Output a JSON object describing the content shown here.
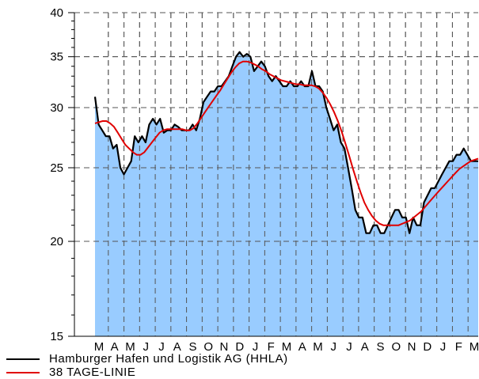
{
  "chart_data": {
    "type": "area",
    "title": "",
    "xlabel": "",
    "ylabel": "",
    "yscale": "log",
    "ylim": [
      15,
      40
    ],
    "yticks": [
      15,
      20,
      25,
      30,
      35,
      40
    ],
    "xlabels": [
      "M",
      "A",
      "M",
      "J",
      "J",
      "A",
      "S",
      "O",
      "N",
      "D",
      "J",
      "F",
      "M",
      "A",
      "M",
      "J",
      "J",
      "A",
      "S",
      "O",
      "N",
      "D",
      "J",
      "F",
      "M"
    ],
    "grid": true,
    "legend_position": "bottom-left",
    "series": [
      {
        "name": "Hamburger Hafen und Logistik AG (HHLA)",
        "color": "#000000",
        "fill": "#99ccff",
        "values": [
          31.0,
          28.5,
          28.0,
          27.5,
          27.5,
          26.5,
          26.8,
          25.0,
          24.5,
          25.0,
          25.5,
          27.5,
          27.0,
          27.5,
          27.0,
          28.5,
          29.0,
          28.5,
          29.0,
          27.8,
          28.0,
          28.0,
          28.5,
          28.3,
          28.0,
          28.0,
          28.0,
          28.5,
          28.0,
          29.0,
          30.5,
          31.0,
          31.5,
          31.5,
          32.0,
          32.0,
          32.5,
          33.0,
          34.0,
          35.0,
          35.5,
          35.0,
          35.3,
          35.0,
          33.5,
          34.0,
          34.5,
          34.0,
          33.0,
          32.5,
          33.0,
          32.5,
          32.0,
          32.0,
          32.5,
          32.0,
          32.0,
          32.5,
          32.0,
          32.0,
          33.5,
          32.0,
          32.0,
          31.5,
          30.0,
          29.0,
          28.0,
          28.5,
          27.0,
          26.5,
          25.0,
          23.5,
          22.0,
          21.5,
          21.5,
          20.5,
          20.5,
          21.0,
          21.0,
          20.5,
          20.5,
          21.0,
          21.5,
          22.0,
          22.0,
          21.5,
          21.5,
          20.5,
          21.5,
          21.0,
          21.0,
          22.5,
          23.0,
          23.5,
          23.5,
          24.0,
          24.5,
          25.0,
          25.5,
          25.5,
          26.0,
          26.0,
          26.5,
          26.0,
          25.5,
          25.5,
          25.5
        ]
      },
      {
        "name": "38 TAGE-LINIE",
        "color": "#e00000",
        "values": [
          28.6,
          28.7,
          28.8,
          28.8,
          28.6,
          28.3,
          27.8,
          27.3,
          26.8,
          26.5,
          26.2,
          26.0,
          26.0,
          26.2,
          26.6,
          27.0,
          27.4,
          27.8,
          28.0,
          28.1,
          28.1,
          28.1,
          28.1,
          28.1,
          28.0,
          28.0,
          28.2,
          28.6,
          29.1,
          29.6,
          30.1,
          30.6,
          31.1,
          31.6,
          32.2,
          32.8,
          33.4,
          33.9,
          34.3,
          34.5,
          34.5,
          34.4,
          34.2,
          34.0,
          33.7,
          33.5,
          33.2,
          33.0,
          32.8,
          32.6,
          32.5,
          32.4,
          32.3,
          32.2,
          32.2,
          32.1,
          32.1,
          32.1,
          32.0,
          31.8,
          31.4,
          30.9,
          30.3,
          29.6,
          28.8,
          27.9,
          26.9,
          25.9,
          24.9,
          24.0,
          23.2,
          22.5,
          22.0,
          21.6,
          21.3,
          21.1,
          21.0,
          21.0,
          21.0,
          21.0,
          21.0,
          21.1,
          21.2,
          21.3,
          21.5,
          21.7,
          21.9,
          22.2,
          22.5,
          22.8,
          23.1,
          23.4,
          23.7,
          24.0,
          24.3,
          24.6,
          24.9,
          25.1,
          25.3,
          25.5,
          25.6,
          25.7
        ]
      }
    ]
  },
  "legend": {
    "items": [
      {
        "label": "Hamburger Hafen und Logistik AG (HHLA)",
        "color": "#000000"
      },
      {
        "label": "38 TAGE-LINIE",
        "color": "#e00000"
      }
    ]
  }
}
